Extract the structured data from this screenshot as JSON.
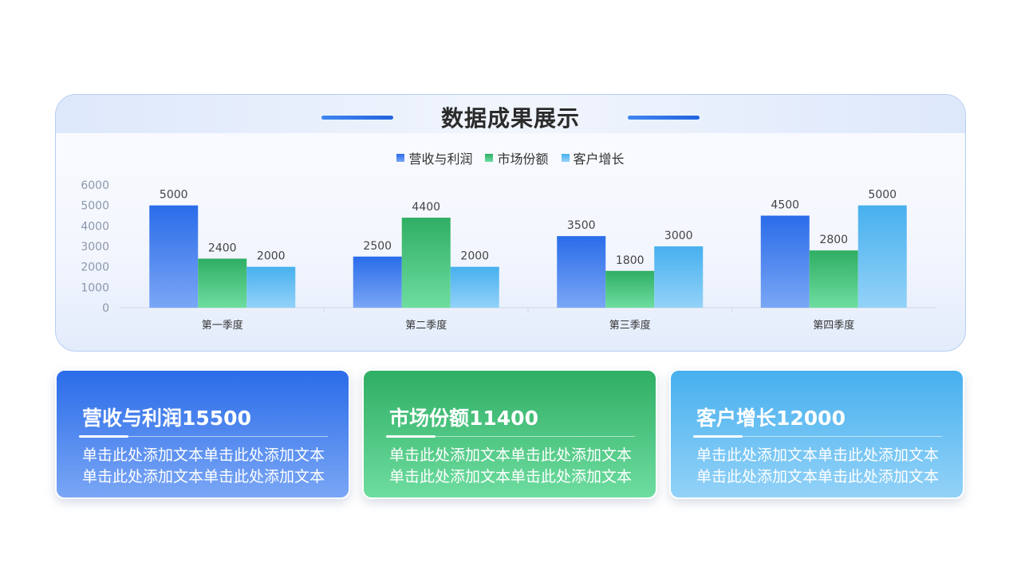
{
  "header": {
    "title": "数据成果展示"
  },
  "colors": {
    "series1": [
      "#2a6ce9",
      "#7aa6f5"
    ],
    "series2": [
      "#2fae64",
      "#6edda0"
    ],
    "series3": [
      "#47b0ee",
      "#93d2f8"
    ]
  },
  "chart_data": {
    "type": "bar",
    "categories": [
      "第一季度",
      "第二季度",
      "第三季度",
      "第四季度"
    ],
    "series": [
      {
        "name": "营收与利润",
        "values": [
          5000,
          2500,
          3500,
          4500
        ]
      },
      {
        "name": "市场份额",
        "values": [
          2400,
          4400,
          1800,
          2800
        ]
      },
      {
        "name": "客户增长",
        "values": [
          2000,
          2000,
          3000,
          5000
        ]
      }
    ],
    "ylim": [
      0,
      6000
    ],
    "yticks": [
      0,
      1000,
      2000,
      3000,
      4000,
      5000,
      6000
    ],
    "legend": "top-center",
    "grid": false,
    "data_labels": true
  },
  "cards": [
    {
      "title": "营收与利润15500",
      "text": "单击此处添加文本单击此处添加文本单击此处添加文本单击此处添加文本"
    },
    {
      "title": "市场份额11400",
      "text": "单击此处添加文本单击此处添加文本单击此处添加文本单击此处添加文本"
    },
    {
      "title": "客户增长12000",
      "text": "单击此处添加文本单击此处添加文本单击此处添加文本单击此处添加文本"
    }
  ]
}
